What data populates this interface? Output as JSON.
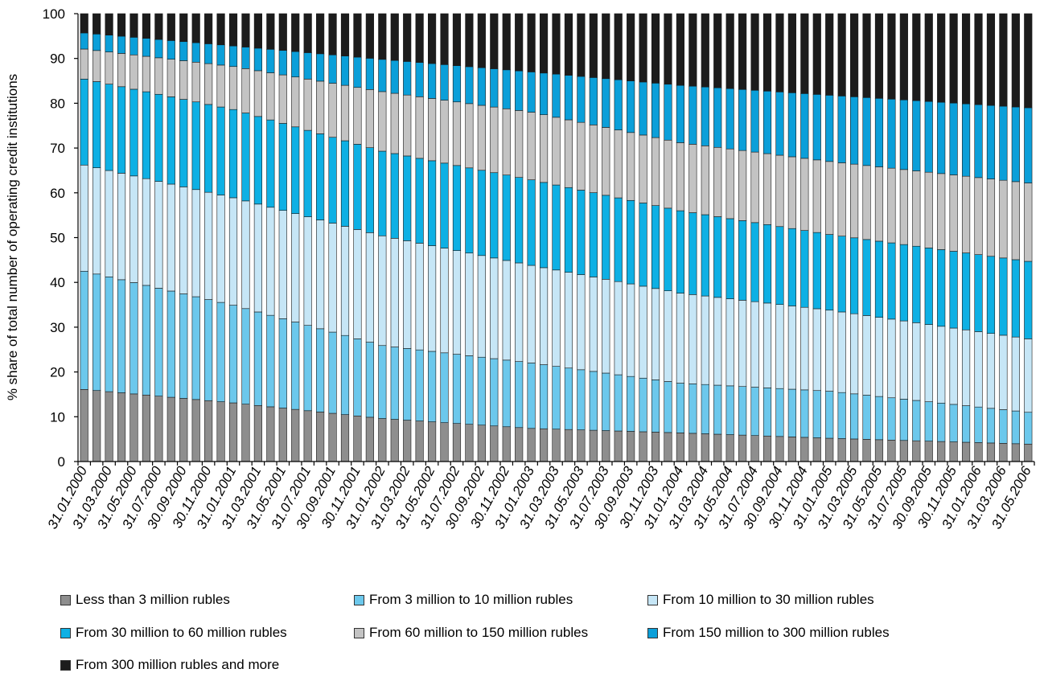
{
  "chart_data": {
    "type": "bar",
    "stacked": true,
    "ylabel": "% share of total number of operating credit institutions",
    "ylim": [
      0,
      100
    ],
    "yticks": [
      0,
      10,
      20,
      30,
      40,
      50,
      60,
      70,
      80,
      90,
      100
    ],
    "grid": false,
    "legend_position": "bottom",
    "x_tick_labels": [
      "31.01.2000",
      "31.03.2000",
      "31.05.2000",
      "31.07.2000",
      "30.09.2000",
      "30.11.2000",
      "31.01.2001",
      "31.03.2001",
      "31.05.2001",
      "31.07.2001",
      "30.09.2001",
      "30.11.2001",
      "31.01.2002",
      "31.03.2002",
      "31.05.2002",
      "31.07.2002",
      "30.09.2002",
      "30.11.2002",
      "31.01.2003",
      "31.03.2003",
      "31.05.2003",
      "31.07.2003",
      "30.09.2003",
      "30.11.2003",
      "31.01.2004",
      "31.03.2004",
      "31.05.2004",
      "31.07.2004",
      "30.09.2004",
      "30.11.2004",
      "31.01.2005",
      "31.03.2005",
      "31.05.2005",
      "31.07.2005",
      "30.09.2005",
      "30.11.2005",
      "31.01.2006",
      "31.03.2006",
      "31.05.2006"
    ],
    "categories": [
      "01.2000",
      "02.2000",
      "03.2000",
      "04.2000",
      "05.2000",
      "06.2000",
      "07.2000",
      "08.2000",
      "09.2000",
      "10.2000",
      "11.2000",
      "12.2000",
      "01.2001",
      "02.2001",
      "03.2001",
      "04.2001",
      "05.2001",
      "06.2001",
      "07.2001",
      "08.2001",
      "09.2001",
      "10.2001",
      "11.2001",
      "12.2001",
      "01.2002",
      "02.2002",
      "03.2002",
      "04.2002",
      "05.2002",
      "06.2002",
      "07.2002",
      "08.2002",
      "09.2002",
      "10.2002",
      "11.2002",
      "12.2002",
      "01.2003",
      "02.2003",
      "03.2003",
      "04.2003",
      "05.2003",
      "06.2003",
      "07.2003",
      "08.2003",
      "09.2003",
      "10.2003",
      "11.2003",
      "12.2003",
      "01.2004",
      "02.2004",
      "03.2004",
      "04.2004",
      "05.2004",
      "06.2004",
      "07.2004",
      "08.2004",
      "09.2004",
      "10.2004",
      "11.2004",
      "12.2004",
      "01.2005",
      "02.2005",
      "03.2005",
      "04.2005",
      "05.2005",
      "06.2005",
      "07.2005",
      "08.2005",
      "09.2005",
      "10.2005",
      "11.2005",
      "12.2005",
      "01.2006",
      "02.2006",
      "03.2006",
      "04.2006",
      "05.2006"
    ],
    "cumulative_anchors": [
      {
        "index": 0,
        "cum": [
          16.1,
          42.5,
          66.2,
          85.4,
          92.1,
          95.7,
          100
        ]
      },
      {
        "index": 12,
        "cum": [
          13.1,
          34.9,
          58.9,
          78.6,
          88.2,
          92.8,
          100
        ]
      },
      {
        "index": 24,
        "cum": [
          9.6,
          25.9,
          50.4,
          69.3,
          82.6,
          89.8,
          100
        ]
      },
      {
        "index": 36,
        "cum": [
          7.4,
          22.0,
          43.8,
          62.9,
          78.0,
          87.0,
          100
        ]
      },
      {
        "index": 48,
        "cum": [
          6.4,
          17.5,
          37.6,
          56.0,
          71.2,
          84.0,
          100
        ]
      },
      {
        "index": 60,
        "cum": [
          5.2,
          15.7,
          33.8,
          50.7,
          67.0,
          81.8,
          100
        ]
      },
      {
        "index": 76,
        "cum": [
          3.9,
          11.0,
          27.4,
          44.7,
          62.2,
          79.0,
          100
        ]
      }
    ],
    "series": [
      {
        "name": "Less than 3 million rubles",
        "color": "#8e8e8e"
      },
      {
        "name": "From 3 million to 10 million rubles",
        "color": "#6cc8ec"
      },
      {
        "name": "From 10 million to 30 million rubles",
        "color": "#c6e6f6"
      },
      {
        "name": "From 30 million to 60 million rubles",
        "color": "#0eb0e4"
      },
      {
        "name": "From 60 million to 150 million rubles",
        "color": "#c3c3c3"
      },
      {
        "name": "From 150 million to 300 million rubles",
        "color": "#0b9fd9"
      },
      {
        "name": "From 300 million rubles and more",
        "color": "#1c1c1c"
      }
    ]
  }
}
